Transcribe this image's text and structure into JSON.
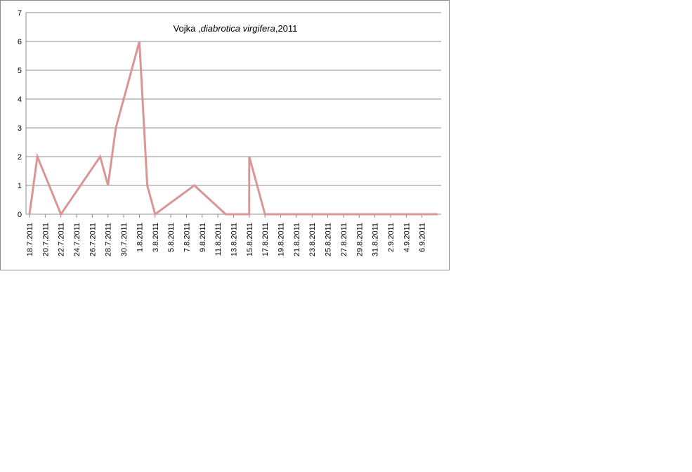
{
  "chart_data": {
    "type": "line",
    "title": {
      "part1": "Vojka ,",
      "part2": "diabrotica virgifera",
      "part3": ",2011"
    },
    "xlabel": "",
    "ylabel": "",
    "ylim": [
      0,
      7
    ],
    "yticks": [
      0,
      1,
      2,
      3,
      4,
      5,
      6,
      7
    ],
    "grid": "horizontal",
    "legend": "none",
    "line_color": "#d99694",
    "grid_color": "#8c8c8c",
    "x_tick_labels": [
      "18.7.2011",
      "20.7.2011",
      "22.7.2011",
      "24.7.2011",
      "26.7.2011",
      "28.7.2011",
      "30.7.2011",
      "1.8.2011",
      "3.8.2011",
      "5.8.2011",
      "7.8.2011",
      "9.8.2011",
      "11.8.2011",
      "13.8.2011",
      "15.8.2011",
      "17.8.2011",
      "19.8.2011",
      "21.8.2011",
      "23.8.2011",
      "25.8.2011",
      "27.8.2011",
      "29.8.2011",
      "31.8.2011",
      "2.9.2011",
      "4.9.2011",
      "6.9.2011"
    ],
    "series": [
      {
        "x": [
          "18.7.2011",
          "19.7.2011",
          "22.7.2011",
          "27.7.2011",
          "28.7.2011",
          "29.7.2011",
          "1.8.2011",
          "2.8.2011",
          "3.8.2011",
          "8.8.2011",
          "12.8.2011",
          "15.8.2011",
          "15.8.2011",
          "17.8.2011",
          "8.9.2011"
        ],
        "values": [
          0,
          2,
          0,
          2,
          1,
          3,
          6,
          1,
          0,
          1,
          0,
          0,
          2,
          0,
          0
        ]
      }
    ]
  }
}
